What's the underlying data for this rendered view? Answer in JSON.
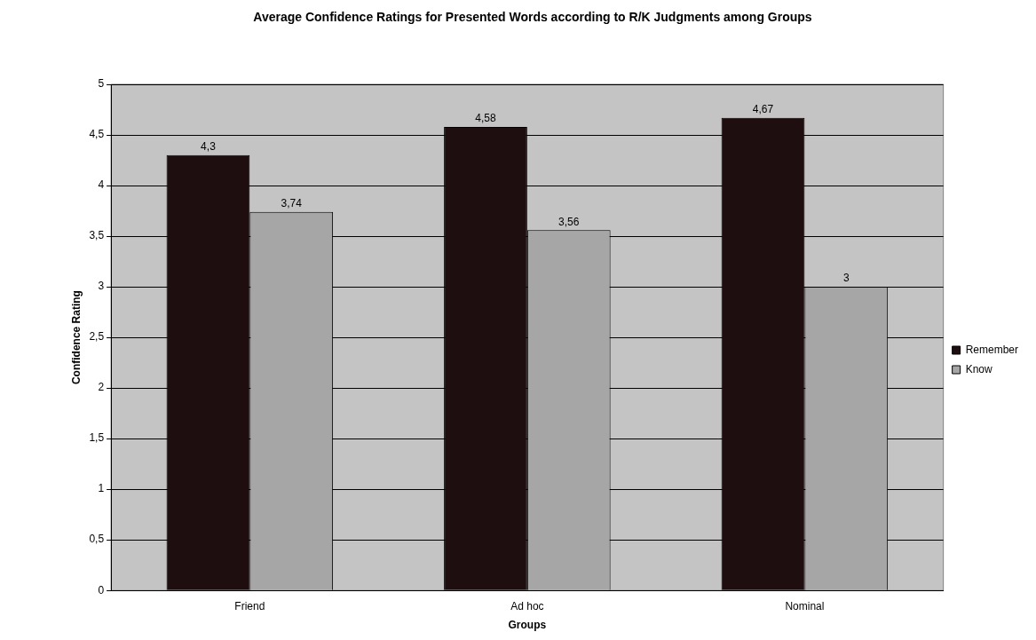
{
  "chart_data": {
    "type": "bar",
    "title": "Average Confidence Ratings for Presented Words according to R/K Judgments among Groups",
    "xlabel": "Groups",
    "ylabel": "Confidence Rating",
    "categories": [
      "Friend",
      "Ad hoc",
      "Nominal"
    ],
    "series": [
      {
        "name": "Remember",
        "color": "#1e0e10",
        "values": [
          4.3,
          4.58,
          4.67
        ],
        "value_labels": [
          "4,3",
          "4,58",
          "4,67"
        ]
      },
      {
        "name": "Know",
        "color": "#a6a6a6",
        "values": [
          3.74,
          3.56,
          3
        ],
        "value_labels": [
          "3,74",
          "3,56",
          "3"
        ]
      }
    ],
    "ylim": [
      0,
      5
    ],
    "yticks": [
      0,
      {
        "value": 0.5,
        "label": "0,5"
      },
      1,
      {
        "value": 1.5,
        "label": "1,5"
      },
      2,
      {
        "value": 2.5,
        "label": "2,5"
      },
      3,
      {
        "value": 3.5,
        "label": "3,5"
      },
      4,
      {
        "value": 4.5,
        "label": "4,5"
      },
      5
    ],
    "grid": "y",
    "legend": "right"
  }
}
